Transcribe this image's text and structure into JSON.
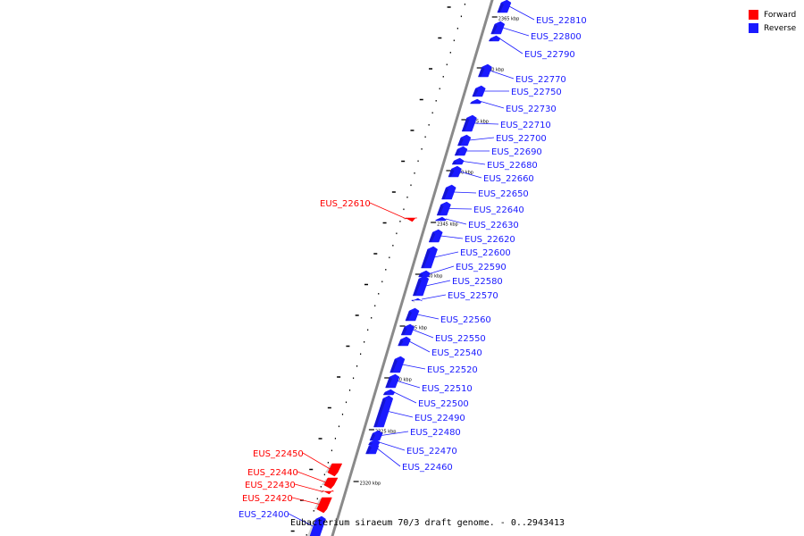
{
  "caption": "Eubacterium siraeum 70/3 draft genome. - 0..2943413",
  "colors": {
    "forward": "#ff0000",
    "reverse": "#1a1aff",
    "axis": "#8a8a8a"
  },
  "legend": [
    {
      "label": "Forward",
      "color": "#ff0000"
    },
    {
      "label": "Reverse",
      "color": "#1a1aff"
    }
  ],
  "ticks": [
    "2320 kbp",
    "2325 kbp",
    "2330 kbp",
    "2335 kbp",
    "2340 kbp",
    "2345 kbp",
    "2350 kbp",
    "2355 kbp",
    "2360 kbp",
    "2365 kbp"
  ],
  "genes": [
    {
      "label": "EUS_22810",
      "strand": "reverse"
    },
    {
      "label": "EUS_22800",
      "strand": "reverse"
    },
    {
      "label": "EUS_22790",
      "strand": "reverse"
    },
    {
      "label": "EUS_22770",
      "strand": "reverse"
    },
    {
      "label": "EUS_22750",
      "strand": "reverse"
    },
    {
      "label": "EUS_22730",
      "strand": "reverse"
    },
    {
      "label": "EUS_22710",
      "strand": "reverse"
    },
    {
      "label": "EUS_22700",
      "strand": "reverse"
    },
    {
      "label": "EUS_22690",
      "strand": "reverse"
    },
    {
      "label": "EUS_22680",
      "strand": "reverse"
    },
    {
      "label": "EUS_22660",
      "strand": "reverse"
    },
    {
      "label": "EUS_22650",
      "strand": "reverse"
    },
    {
      "label": "EUS_22640",
      "strand": "reverse"
    },
    {
      "label": "EUS_22630",
      "strand": "reverse"
    },
    {
      "label": "EUS_22620",
      "strand": "reverse"
    },
    {
      "label": "EUS_22600",
      "strand": "reverse"
    },
    {
      "label": "EUS_22590",
      "strand": "reverse"
    },
    {
      "label": "EUS_22580",
      "strand": "reverse"
    },
    {
      "label": "EUS_22570",
      "strand": "reverse"
    },
    {
      "label": "EUS_22560",
      "strand": "reverse"
    },
    {
      "label": "EUS_22550",
      "strand": "reverse"
    },
    {
      "label": "EUS_22540",
      "strand": "reverse"
    },
    {
      "label": "EUS_22520",
      "strand": "reverse"
    },
    {
      "label": "EUS_22510",
      "strand": "reverse"
    },
    {
      "label": "EUS_22500",
      "strand": "reverse"
    },
    {
      "label": "EUS_22490",
      "strand": "reverse"
    },
    {
      "label": "EUS_22480",
      "strand": "reverse"
    },
    {
      "label": "EUS_22470",
      "strand": "reverse"
    },
    {
      "label": "EUS_22460",
      "strand": "reverse"
    },
    {
      "label": "EUS_22610",
      "strand": "forward"
    },
    {
      "label": "EUS_22450",
      "strand": "forward"
    },
    {
      "label": "EUS_22440",
      "strand": "forward"
    },
    {
      "label": "EUS_22430",
      "strand": "forward"
    },
    {
      "label": "EUS_22420",
      "strand": "forward"
    },
    {
      "label": "EUS_22400",
      "strand": "reverse"
    }
  ]
}
